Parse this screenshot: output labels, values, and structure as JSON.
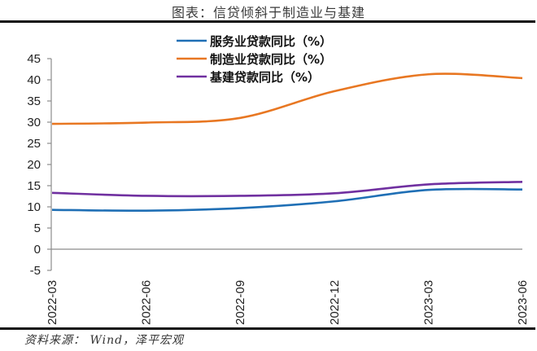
{
  "header": {
    "title": "图表：信贷倾斜于制造业与基建"
  },
  "footer": {
    "source": "资料来源：  Wind，泽平宏观"
  },
  "chart_data": {
    "type": "line",
    "title": "图表：信贷倾斜于制造业与基建",
    "xlabel": "",
    "ylabel": "",
    "categories": [
      "2022-03",
      "2022-06",
      "2022-09",
      "2022-12",
      "2023-03",
      "2023-06"
    ],
    "ylim": [
      -5,
      45
    ],
    "yticks": [
      -5,
      0,
      5,
      10,
      15,
      20,
      25,
      30,
      35,
      40,
      45
    ],
    "grid": false,
    "legend_position": "top-center",
    "series": [
      {
        "name": "服务业贷款同比（%）",
        "color": "#1f6fb5",
        "values": [
          9.3,
          9.1,
          9.7,
          11.3,
          14.0,
          14.1
        ]
      },
      {
        "name": "制造业贷款同比（%）",
        "color": "#e87722",
        "values": [
          29.6,
          29.9,
          31.0,
          37.3,
          41.3,
          40.4
        ]
      },
      {
        "name": "基建贷款同比（%）",
        "color": "#7030a0",
        "values": [
          13.3,
          12.6,
          12.6,
          13.2,
          15.3,
          15.9
        ]
      }
    ]
  }
}
